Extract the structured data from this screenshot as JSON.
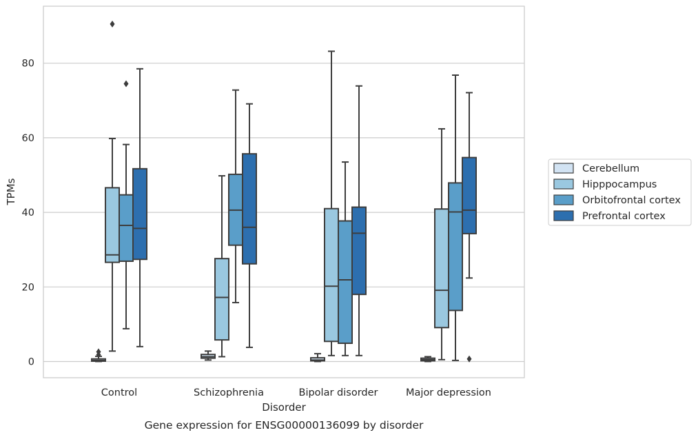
{
  "chart_data": {
    "type": "box",
    "caption": "Gene expression for ENSG00000136099 by disorder",
    "xlabel": "Disorder",
    "ylabel": "TPMs",
    "ylim": [
      -4.5,
      95
    ],
    "yticks": [
      0,
      20,
      40,
      60,
      80
    ],
    "grid": "horizontal",
    "legend_position": "right",
    "categories": [
      "Control",
      "Schizophrenia",
      "Bipolar disorder",
      "Major depression"
    ],
    "series": [
      {
        "name": "Cerebellum",
        "color": "#d2e3f3",
        "boxes": [
          {
            "min": 0,
            "q1": 0.1,
            "median": 0.3,
            "q3": 0.7,
            "max": 1.4,
            "outliers": [
              2.6,
              1.8
            ]
          },
          {
            "min": 0.4,
            "q1": 0.9,
            "median": 1.3,
            "q3": 1.9,
            "max": 2.8,
            "outliers": []
          },
          {
            "min": 0,
            "q1": 0.2,
            "median": 0.4,
            "q3": 1.0,
            "max": 2.1,
            "outliers": []
          },
          {
            "min": 0,
            "q1": 0.2,
            "median": 0.5,
            "q3": 0.9,
            "max": 1.3,
            "outliers": []
          }
        ]
      },
      {
        "name": "Hipppocampus",
        "color": "#9ac8e0",
        "boxes": [
          {
            "min": 2.8,
            "q1": 26.6,
            "median": 28.6,
            "q3": 46.6,
            "max": 59.8,
            "outliers": [
              90.5
            ]
          },
          {
            "min": 1.3,
            "q1": 5.8,
            "median": 17.2,
            "q3": 27.6,
            "max": 49.8,
            "outliers": []
          },
          {
            "min": 1.6,
            "q1": 5.4,
            "median": 20.2,
            "q3": 41.0,
            "max": 83.2,
            "outliers": []
          },
          {
            "min": 0.5,
            "q1": 9.1,
            "median": 19.1,
            "q3": 40.9,
            "max": 62.4,
            "outliers": []
          }
        ]
      },
      {
        "name": "Orbitofrontal cortex",
        "color": "#5a9ec9",
        "boxes": [
          {
            "min": 8.8,
            "q1": 26.9,
            "median": 36.5,
            "q3": 44.7,
            "max": 58.2,
            "outliers": [
              74.5
            ]
          },
          {
            "min": 15.8,
            "q1": 31.2,
            "median": 40.6,
            "q3": 50.2,
            "max": 72.8,
            "outliers": []
          },
          {
            "min": 1.6,
            "q1": 4.9,
            "median": 21.9,
            "q3": 37.7,
            "max": 53.5,
            "outliers": []
          },
          {
            "min": 0.3,
            "q1": 13.7,
            "median": 40.1,
            "q3": 47.9,
            "max": 76.8,
            "outliers": []
          }
        ]
      },
      {
        "name": "Prefrontal cortex",
        "color": "#2d6faf",
        "boxes": [
          {
            "min": 4.0,
            "q1": 27.4,
            "median": 35.7,
            "q3": 51.7,
            "max": 78.5,
            "outliers": []
          },
          {
            "min": 3.8,
            "q1": 26.2,
            "median": 36.0,
            "q3": 55.7,
            "max": 69.1,
            "outliers": []
          },
          {
            "min": 1.6,
            "q1": 18.0,
            "median": 34.4,
            "q3": 41.4,
            "max": 73.9,
            "outliers": []
          },
          {
            "min": 22.4,
            "q1": 34.3,
            "median": 40.6,
            "q3": 54.7,
            "max": 72.1,
            "outliers": [
              0.7
            ]
          }
        ]
      }
    ]
  }
}
